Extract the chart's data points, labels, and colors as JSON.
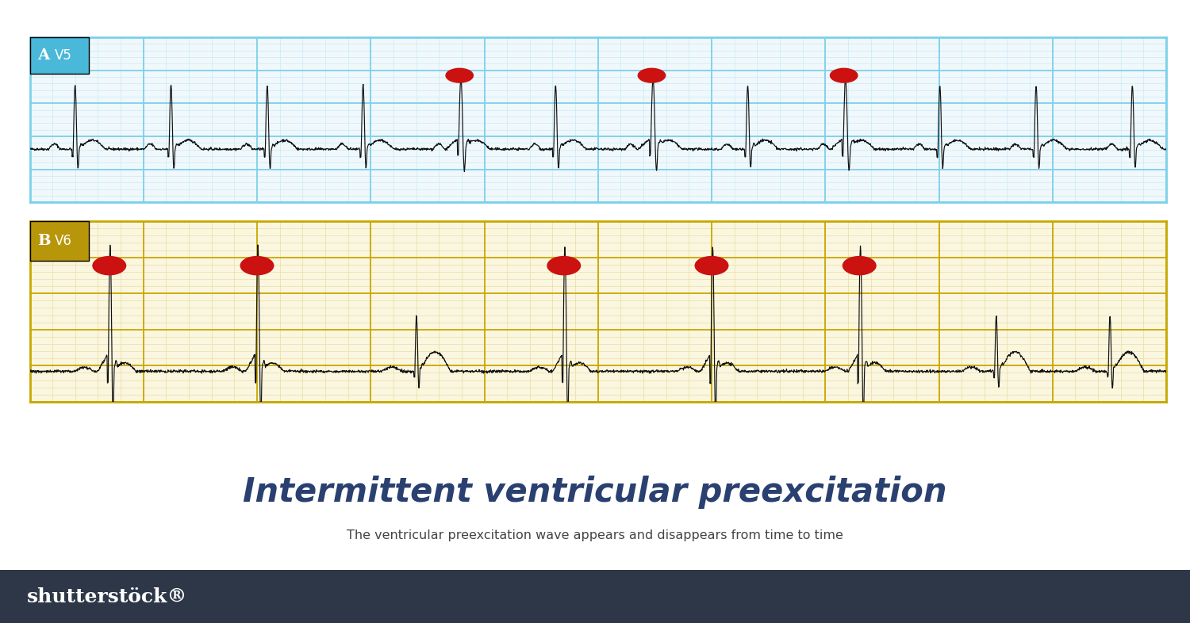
{
  "title": "Intermittent ventricular preexcitation",
  "subtitle": "The ventricular preexcitation wave appears and disappears from time to time",
  "label_a": "A",
  "label_b": "B",
  "lead_a": "V5",
  "lead_b": "V6",
  "panel_a_header_color": "#4ab8d8",
  "panel_a_border_color": "#5bc4e0",
  "panel_a_minor_color": "#c8eaf5",
  "panel_a_major_color": "#7dd0ea",
  "panel_b_header_color": "#b8960a",
  "panel_b_border_color": "#c8a800",
  "panel_b_minor_color": "#e8dfa0",
  "panel_b_major_color": "#c8a800",
  "grid_bg_a": "#f0f8fc",
  "grid_bg_b": "#faf6e0",
  "ecg_color": "#111111",
  "dot_color": "#cc1111",
  "title_color": "#2a4070",
  "subtitle_color": "#444444",
  "background_color": "#ffffff",
  "footer_color": "#2d3748"
}
